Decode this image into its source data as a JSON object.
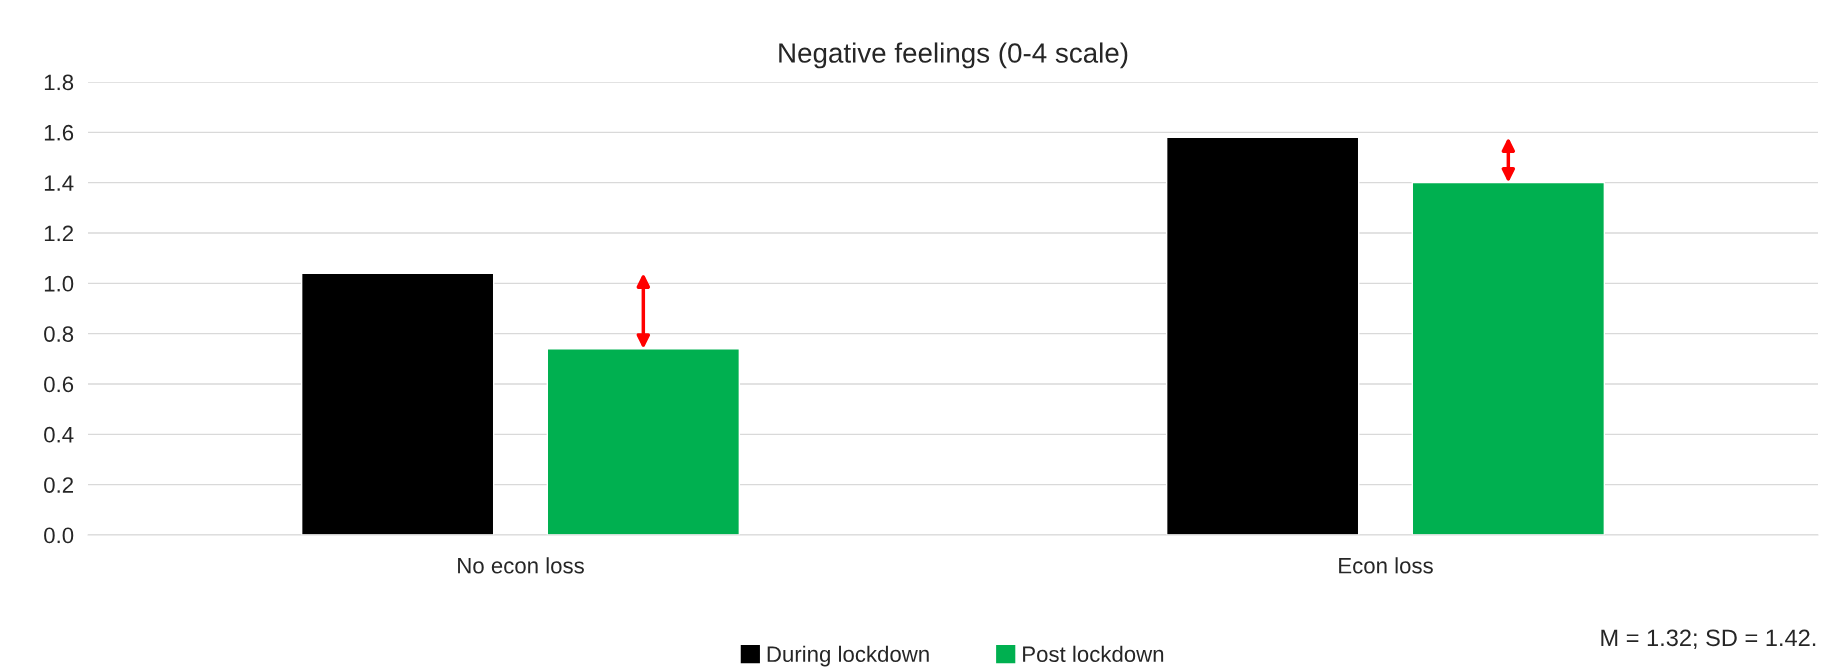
{
  "chart_data": {
    "type": "bar",
    "title": "Negative feelings (0-4 scale)",
    "categories": [
      "No econ loss",
      "Econ loss"
    ],
    "series": [
      {
        "name": "During lockdown",
        "color": "#000000",
        "values": [
          1.04,
          1.58
        ]
      },
      {
        "name": "Post lockdown",
        "color": "#00b050",
        "values": [
          0.74,
          1.4
        ]
      }
    ],
    "ylim": [
      0,
      1.8
    ],
    "yticks": [
      {
        "value": 0,
        "label": "0.0"
      },
      {
        "value": 0.2,
        "label": "0.2"
      },
      {
        "value": 0.4,
        "label": "0.4"
      },
      {
        "value": 0.6,
        "label": "0.6"
      },
      {
        "value": 0.8,
        "label": "0.8"
      },
      {
        "value": 1.0,
        "label": "1.0"
      },
      {
        "value": 1.2,
        "label": "1.2"
      },
      {
        "value": 1.4,
        "label": "1.4"
      },
      {
        "value": 1.6,
        "label": "1.6"
      },
      {
        "value": 1.8,
        "label": "1.8"
      }
    ],
    "grid": "y",
    "legend": "bottom",
    "annotations": [
      "M = 1.32; SD = 1.42."
    ]
  }
}
